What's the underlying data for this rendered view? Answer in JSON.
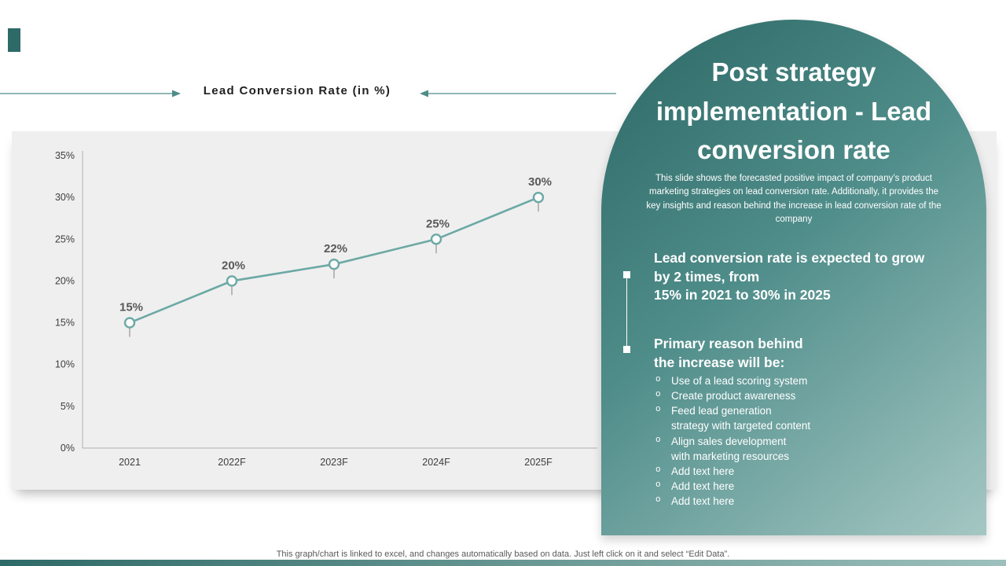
{
  "colors": {
    "teal_dark": "#2f6b68",
    "teal_mid": "#4f8d8a",
    "teal_light": "#a5c7c3",
    "line": "#6ca9a5",
    "data_label": "#595959",
    "chart_bg": "#efefef",
    "axis": "#b0b0b0"
  },
  "header": {
    "chart_title": "Lead Conversion Rate (in %)"
  },
  "chart_data": {
    "type": "line",
    "title": "Lead Conversion Rate (in %)",
    "categories": [
      "2021",
      "2022F",
      "2023F",
      "2024F",
      "2025F"
    ],
    "series": [
      {
        "name": "Lead Conversion Rate",
        "values": [
          15,
          20,
          22,
          25,
          30
        ]
      }
    ],
    "data_labels": [
      "15%",
      "20%",
      "22%",
      "25%",
      "30%"
    ],
    "xlabel": "",
    "ylabel": "",
    "ylim": [
      0,
      35
    ],
    "ytick_step": 5,
    "ytick_labels": [
      "0%",
      "5%",
      "10%",
      "15%",
      "20%",
      "25%",
      "30%",
      "35%"
    ],
    "grid": false,
    "legend": "none",
    "marker": "circle",
    "line_color": "#6ca9a5"
  },
  "panel": {
    "title": "Post strategy\nimplementation - Lead\nconversion rate",
    "subtitle": "This slide shows the forecasted positive impact of company’s product marketing strategies on lead conversion rate. Additionally, it provides the key insights and reason behind the increase in lead conversion rate of the company",
    "insight1": "Lead conversion rate is expected to grow\nby 2 times, from\n15% in 2021 to 30% in 2025",
    "insight2_title": "Primary reason behind\nthe increase will be:",
    "bullets": [
      "Use of a lead scoring system",
      "Create product awareness",
      "Feed lead generation\nstrategy with targeted content",
      "Align sales development\nwith marketing resources",
      "Add text here",
      "Add text here",
      "Add text here"
    ]
  },
  "footer": {
    "note": "This graph/chart is linked to excel, and changes automatically based on data. Just left click on it and select “Edit Data”."
  }
}
